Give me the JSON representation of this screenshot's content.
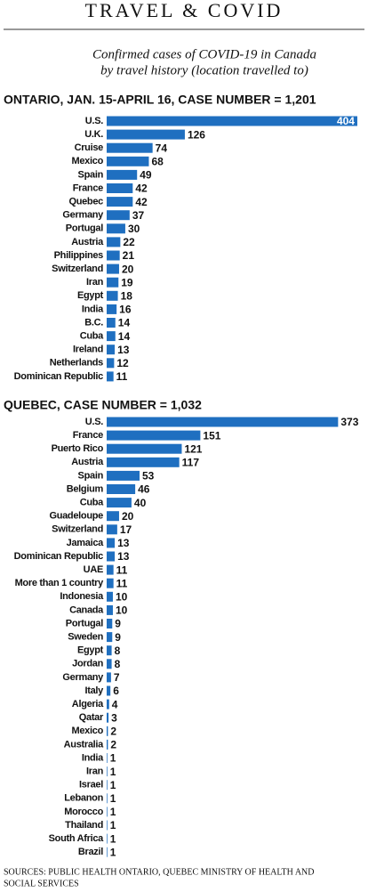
{
  "header": {
    "title": "TRAVEL & COVID",
    "subtitle": [
      "Confirmed cases of COVID-19 in Canada",
      "by travel history (location travelled to)"
    ]
  },
  "chart_data": [
    {
      "type": "bar",
      "orientation": "horizontal",
      "title": "ONTARIO, JAN. 15-APRIL 16, CASE NUMBER = 1,201",
      "color": "#1f6fc0",
      "categories": [
        "U.S.",
        "U.K.",
        "Cruise",
        "Mexico",
        "Spain",
        "France",
        "Quebec",
        "Germany",
        "Portugal",
        "Austria",
        "Philippines",
        "Switzerland",
        "Iran",
        "Egypt",
        "India",
        "B.C.",
        "Cuba",
        "Ireland",
        "Netherlands",
        "Dominican Republic"
      ],
      "values": [
        404,
        126,
        74,
        68,
        49,
        42,
        42,
        37,
        30,
        22,
        21,
        20,
        19,
        18,
        16,
        14,
        14,
        13,
        12,
        11
      ]
    },
    {
      "type": "bar",
      "orientation": "horizontal",
      "title": "QUEBEC, CASE NUMBER = 1,032",
      "color": "#1f6fc0",
      "categories": [
        "U.S.",
        "France",
        "Puerto Rico",
        "Austria",
        "Spain",
        "Belgium",
        "Cuba",
        "Guadeloupe",
        "Switzerland",
        "Jamaica",
        "Dominican Republic",
        "UAE",
        "More than 1 country",
        "Indonesia",
        "Canada",
        "Portugal",
        "Sweden",
        "Egypt",
        "Jordan",
        "Germany",
        "Italy",
        "Algeria",
        "Qatar",
        "Mexico",
        "Australia",
        "India",
        "Iran",
        "Israel",
        "Lebanon",
        "Morocco",
        "Thailand",
        "South Africa",
        "Brazil"
      ],
      "values": [
        373,
        151,
        121,
        117,
        53,
        46,
        40,
        20,
        17,
        13,
        13,
        11,
        11,
        10,
        10,
        9,
        9,
        8,
        8,
        7,
        6,
        4,
        3,
        2,
        2,
        1,
        1,
        1,
        1,
        1,
        1,
        1,
        1
      ]
    }
  ],
  "sources": [
    "SOURCES: PUBLIC HEALTH ONTARIO, QUEBEC MINISTRY OF HEALTH AND",
    "SOCIAL SERVICES"
  ]
}
